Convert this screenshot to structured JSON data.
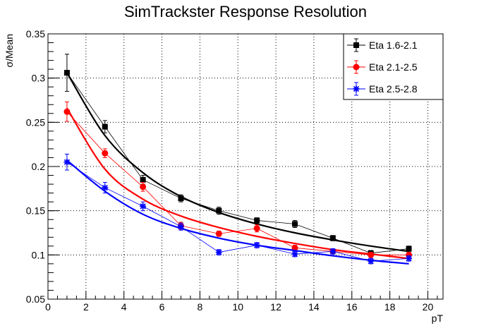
{
  "chart_data": {
    "type": "scatter",
    "title": "SimTrackster Response Resolution",
    "xlabel": "pT",
    "ylabel": "σ/Mean",
    "xlim": [
      0,
      20.8
    ],
    "ylim": [
      0.05,
      0.35
    ],
    "x_ticks": [
      "0",
      "2",
      "4",
      "6",
      "8",
      "10",
      "12",
      "14",
      "16",
      "18",
      "20"
    ],
    "y_ticks": [
      "0.05",
      "0.1",
      "0.15",
      "0.2",
      "0.25",
      "0.3",
      "0.35"
    ],
    "grid": true,
    "legend_position": "top-right",
    "series": [
      {
        "name": "Eta 1.6-2.1",
        "color": "#000000",
        "marker": "square",
        "x": [
          1,
          3,
          5,
          7,
          9,
          11,
          13,
          15,
          17,
          19
        ],
        "y": [
          0.306,
          0.245,
          0.185,
          0.164,
          0.15,
          0.139,
          0.135,
          0.119,
          0.102,
          0.107
        ],
        "err": [
          0.021,
          0.007,
          0.005,
          0.004,
          0.004,
          0.003,
          0.004,
          0.003,
          0.003,
          0.003
        ],
        "fit": [
          0.306,
          0.235,
          0.193,
          0.166,
          0.148,
          0.135,
          0.125,
          0.117,
          0.11,
          0.104
        ]
      },
      {
        "name": "Eta 2.1-2.5",
        "color": "#ff0000",
        "marker": "circle",
        "x": [
          1,
          3,
          5,
          7,
          9,
          11,
          13,
          15,
          17,
          19
        ],
        "y": [
          0.262,
          0.215,
          0.177,
          0.133,
          0.124,
          0.13,
          0.108,
          0.104,
          0.1,
          0.1
        ],
        "err": [
          0.011,
          0.005,
          0.005,
          0.004,
          0.003,
          0.004,
          0.003,
          0.003,
          0.003,
          0.003
        ],
        "fit": [
          0.266,
          0.197,
          0.163,
          0.144,
          0.131,
          0.121,
          0.113,
          0.106,
          0.101,
          0.096
        ]
      },
      {
        "name": "Eta 2.5-2.8",
        "color": "#0000ff",
        "marker": "star",
        "x": [
          1,
          3,
          5,
          7,
          9,
          11,
          13,
          15,
          17,
          19
        ],
        "y": [
          0.205,
          0.176,
          0.155,
          0.132,
          0.103,
          0.111,
          0.101,
          0.104,
          0.093,
          0.096
        ],
        "err": [
          0.009,
          0.006,
          0.005,
          0.004,
          0.003,
          0.003,
          0.003,
          0.003,
          0.003,
          0.003
        ],
        "fit": [
          0.207,
          0.172,
          0.146,
          0.13,
          0.119,
          0.111,
          0.105,
          0.099,
          0.094,
          0.09
        ]
      }
    ]
  }
}
